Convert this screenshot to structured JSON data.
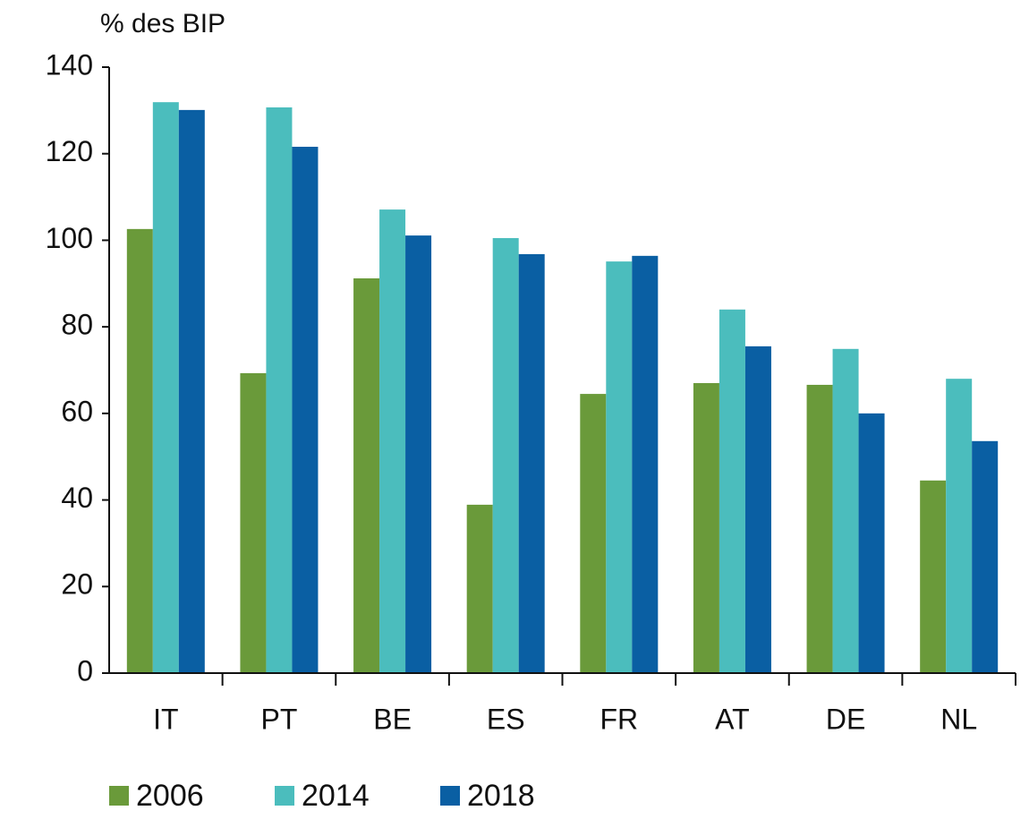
{
  "chart_data": {
    "type": "bar",
    "y_label": "% des BIP",
    "categories": [
      "IT",
      "PT",
      "BE",
      "ES",
      "FR",
      "AT",
      "DE",
      "NL"
    ],
    "series": [
      {
        "name": "2006",
        "color": "#6a9a3a",
        "values": [
          102.6,
          69.3,
          91.2,
          38.9,
          64.5,
          67.0,
          66.6,
          44.5
        ]
      },
      {
        "name": "2014",
        "color": "#4bbdbd",
        "values": [
          131.9,
          130.7,
          107.1,
          100.5,
          95.1,
          84.0,
          74.9,
          68.0
        ]
      },
      {
        "name": "2018",
        "color": "#0a5fa3",
        "values": [
          130.1,
          121.6,
          101.1,
          96.8,
          96.4,
          75.5,
          60.0,
          53.6
        ]
      }
    ],
    "ylim": [
      0,
      140
    ],
    "yticks": [
      0,
      20,
      40,
      60,
      80,
      100,
      120,
      140
    ]
  }
}
